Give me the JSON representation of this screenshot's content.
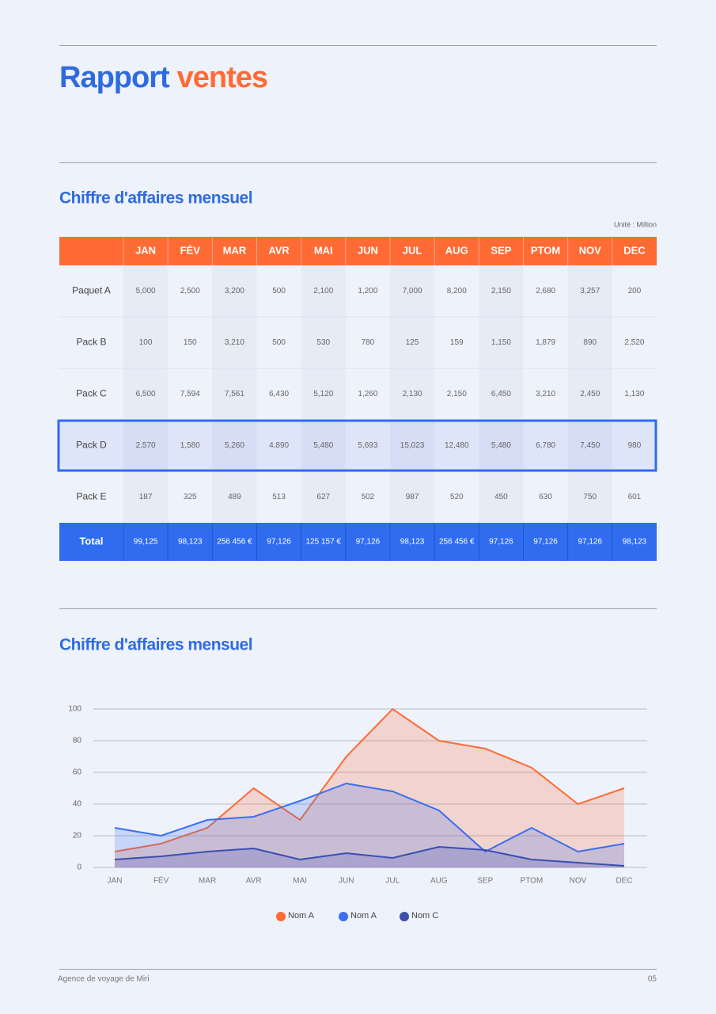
{
  "header": {
    "title_first": "Rapport",
    "title_second": "ventes"
  },
  "table_section": {
    "title": "Chiffre d'affaires mensuel",
    "unit": "Unité : Million",
    "table": {
      "columns": [
        "JAN",
        "FÉV",
        "MAR",
        "AVR",
        "MAI",
        "JUN",
        "JUL",
        "AUG",
        "SEP",
        "PTOM",
        "NOV",
        "DEC"
      ],
      "rows": [
        {
          "label": "Paquet A",
          "values": [
            "5,000",
            "2,500",
            "3,200",
            "500",
            "2,100",
            "1,200",
            "7,000",
            "8,200",
            "2,150",
            "2,680",
            "3,257",
            "200"
          ]
        },
        {
          "label": "Pack B",
          "values": [
            "100",
            "150",
            "3,210",
            "500",
            "530",
            "780",
            "125",
            "159",
            "1,150",
            "1,879",
            "890",
            "2,520"
          ]
        },
        {
          "label": "Pack C",
          "values": [
            "6,500",
            "7,594",
            "7,561",
            "6,430",
            "5,120",
            "1,260",
            "2,130",
            "2,150",
            "6,450",
            "3,210",
            "2,450",
            "1,130"
          ]
        },
        {
          "label": "Pack D",
          "values": [
            "2,570",
            "1,580",
            "5,260",
            "4,890",
            "5,480",
            "5,693",
            "15,023",
            "12,480",
            "5,480",
            "6,780",
            "7,450",
            "980"
          ]
        },
        {
          "label": "Pack E",
          "values": [
            "187",
            "325",
            "489",
            "513",
            "627",
            "502",
            "987",
            "520",
            "450",
            "630",
            "750",
            "601"
          ]
        }
      ],
      "total": {
        "label": "Total",
        "values": [
          "99,125",
          "98,123",
          "256 456 €",
          "97,126",
          "125 157 €",
          "97,126",
          "98,123",
          "256 456 €",
          "97,126",
          "97,126",
          "97,126",
          "98,123"
        ]
      }
    }
  },
  "chart_section": {
    "title": "Chiffre d'affaires mensuel"
  },
  "chart_data": {
    "type": "area",
    "categories": [
      "JAN",
      "FÉV",
      "MAR",
      "AVR",
      "MAI",
      "JUN",
      "JUL",
      "AUG",
      "SEP",
      "PTOM",
      "NOV",
      "DEC"
    ],
    "series": [
      {
        "name": "Nom A",
        "color": "#ff6b35",
        "values": [
          10,
          15,
          25,
          50,
          30,
          70,
          100,
          80,
          75,
          63,
          40,
          50
        ]
      },
      {
        "name": "Nom A",
        "color": "#3b6ef0",
        "values": [
          25,
          20,
          30,
          32,
          42,
          53,
          48,
          36,
          10,
          25,
          10,
          15
        ]
      },
      {
        "name": "Nom C",
        "color": "#3a4fb0",
        "values": [
          5,
          7,
          10,
          12,
          5,
          9,
          6,
          13,
          11,
          5,
          3,
          1
        ]
      }
    ],
    "ylim": [
      0,
      100
    ],
    "yticks": [
      0,
      20,
      40,
      60,
      80,
      100
    ],
    "grid": true
  },
  "footer": {
    "agency": "Agence de voyage de Miri",
    "page": "05"
  }
}
